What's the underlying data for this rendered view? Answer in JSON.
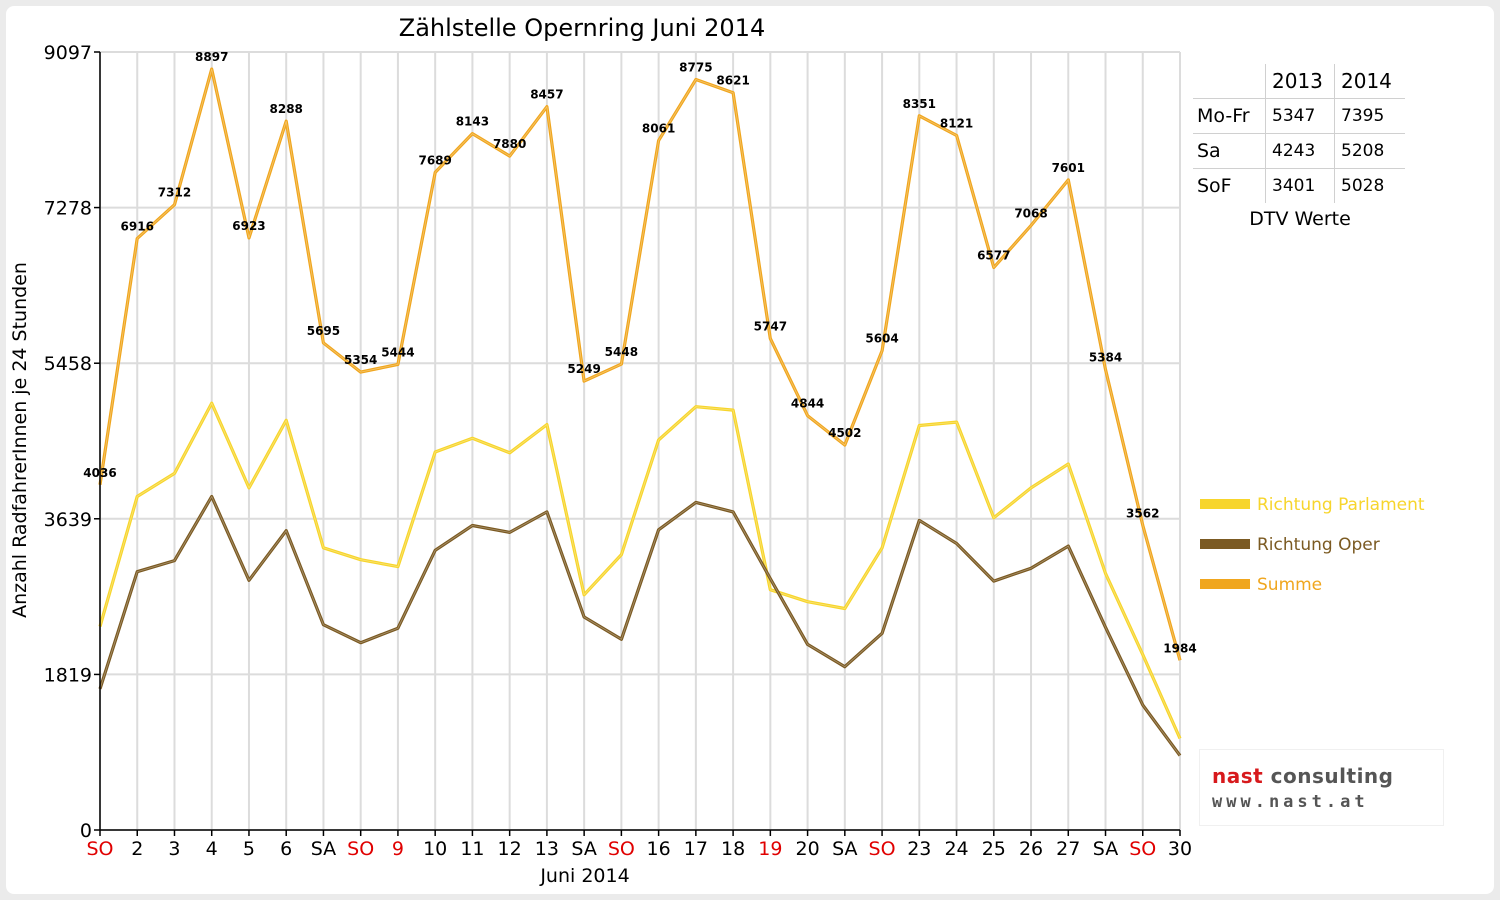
{
  "chart_data": {
    "type": "line",
    "title": "Zählstelle Opernring Juni 2014",
    "xlabel": "Juni 2014",
    "ylabel": "Anzahl RadfahrerInnen je 24 Stunden",
    "ylim": [
      0,
      9097
    ],
    "yticks": [
      "0",
      "1819",
      "3639",
      "5458",
      "7278",
      "9097"
    ],
    "grid": true,
    "legend_position": "right",
    "categories": [
      "SO",
      "2",
      "3",
      "4",
      "5",
      "6",
      "SA",
      "SO",
      "9",
      "10",
      "11",
      "12",
      "13",
      "SA",
      "SO",
      "16",
      "17",
      "18",
      "19",
      "20",
      "SA",
      "SO",
      "23",
      "24",
      "25",
      "26",
      "27",
      "SA",
      "SO",
      "30"
    ],
    "holiday_color": "#e00000",
    "holiday_indices": [
      0,
      7,
      8,
      14,
      18,
      21,
      28
    ],
    "series": [
      {
        "name": "Richtung Parlament",
        "color": "#f7d52c",
        "values": [
          2380,
          3900,
          4170,
          4990,
          4000,
          4790,
          3300,
          3160,
          3080,
          4420,
          4580,
          4410,
          4740,
          2750,
          3220,
          4560,
          4950,
          4910,
          2810,
          2670,
          2590,
          3300,
          4730,
          4770,
          3650,
          4000,
          4280,
          3000,
          2050,
          1070
        ]
      },
      {
        "name": "Richtung Oper",
        "color": "#7b5a22",
        "values": [
          1650,
          3020,
          3150,
          3900,
          2920,
          3500,
          2400,
          2190,
          2360,
          3270,
          3560,
          3480,
          3720,
          2490,
          2230,
          3510,
          3830,
          3720,
          2940,
          2170,
          1910,
          2300,
          3620,
          3350,
          2910,
          3060,
          3320,
          2370,
          1460,
          870
        ]
      },
      {
        "name": "Summe",
        "color": "#f0a61e",
        "values": [
          4036,
          6916,
          7312,
          8897,
          6923,
          8288,
          5695,
          5354,
          5444,
          7689,
          8143,
          7880,
          8457,
          5249,
          5448,
          8061,
          8775,
          8621,
          5747,
          4844,
          4502,
          5604,
          8351,
          8121,
          6577,
          7068,
          7601,
          5384,
          3562,
          1984
        ],
        "labels": [
          "4036",
          "6916",
          "7312",
          "8897",
          "6923",
          "8288",
          "5695",
          "5354",
          "5444",
          "7689",
          "8143",
          "7880",
          "8457",
          "5249",
          "5448",
          "8061",
          "8775",
          "8621",
          "5747",
          "4844",
          "4502",
          "5604",
          "8351",
          "8121",
          "6577",
          "7068",
          "7601",
          "5384",
          "3562",
          "1984"
        ]
      }
    ]
  },
  "dtv_table": {
    "headers": [
      "2013",
      "2014"
    ],
    "rows": [
      {
        "label": "Mo-Fr",
        "v2013": "5347",
        "v2014": "7395"
      },
      {
        "label": "Sa",
        "v2013": "4243",
        "v2014": "5208"
      },
      {
        "label": "SoF",
        "v2013": "3401",
        "v2014": "5028"
      }
    ],
    "caption": "DTV Werte"
  },
  "logo": {
    "name_part1": "nast",
    "name_part2": "consulting",
    "url": "www.nast.at"
  }
}
